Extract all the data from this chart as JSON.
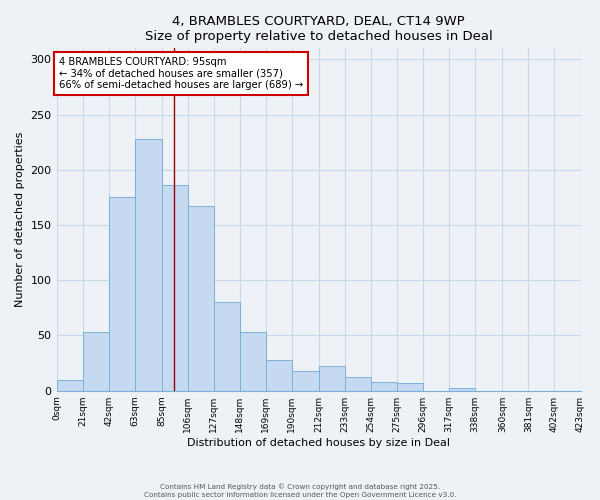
{
  "title": "4, BRAMBLES COURTYARD, DEAL, CT14 9WP",
  "subtitle": "Size of property relative to detached houses in Deal",
  "xlabel": "Distribution of detached houses by size in Deal",
  "ylabel": "Number of detached properties",
  "bar_color": "#c5d9f0",
  "bar_edge_color": "#7ab0d8",
  "grid_color": "#c8d8e8",
  "background_color": "#eef2f7",
  "bin_labels": [
    "0sqm",
    "21sqm",
    "42sqm",
    "63sqm",
    "85sqm",
    "106sqm",
    "127sqm",
    "148sqm",
    "169sqm",
    "190sqm",
    "212sqm",
    "233sqm",
    "254sqm",
    "275sqm",
    "296sqm",
    "317sqm",
    "338sqm",
    "360sqm",
    "381sqm",
    "402sqm",
    "423sqm"
  ],
  "bin_edges": [
    0,
    21,
    42,
    63,
    85,
    106,
    127,
    148,
    169,
    190,
    212,
    233,
    254,
    275,
    296,
    317,
    338,
    360,
    381,
    402,
    423
  ],
  "counts": [
    10,
    53,
    175,
    228,
    186,
    167,
    80,
    53,
    28,
    18,
    22,
    12,
    8,
    7,
    0,
    2,
    0,
    0,
    0,
    0
  ],
  "property_size": 95,
  "vline_color": "#990000",
  "annotation_title": "4 BRAMBLES COURTYARD: 95sqm",
  "annotation_line1": "← 34% of detached houses are smaller (357)",
  "annotation_line2": "66% of semi-detached houses are larger (689) →",
  "annotation_box_color": "#ffffff",
  "annotation_box_edge": "#cc0000",
  "ylim": [
    0,
    310
  ],
  "yticks": [
    0,
    50,
    100,
    150,
    200,
    250,
    300
  ],
  "footer1": "Contains HM Land Registry data © Crown copyright and database right 2025.",
  "footer2": "Contains public sector information licensed under the Open Government Licence v3.0."
}
